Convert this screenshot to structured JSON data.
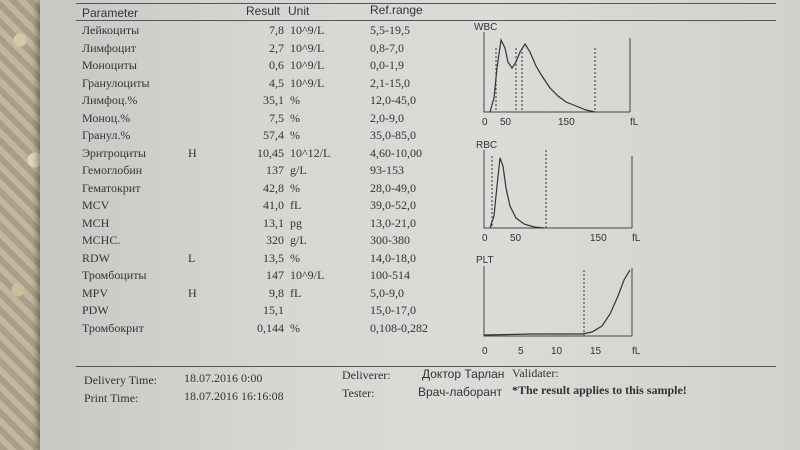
{
  "header": {
    "parameter": "Parameter",
    "result": "Result",
    "unit": "Unit",
    "ref_range": "Ref.range"
  },
  "rows": [
    {
      "name": "Лейкоциты",
      "flag": "",
      "result": "7,8",
      "unit": "10^9/L",
      "ref": "5,5-19,5"
    },
    {
      "name": "Лимфоцит",
      "flag": "",
      "result": "2,7",
      "unit": "10^9/L",
      "ref": "0,8-7,0"
    },
    {
      "name": "Моноциты",
      "flag": "",
      "result": "0,6",
      "unit": "10^9/L",
      "ref": "0,0-1,9"
    },
    {
      "name": "Гранулоциты",
      "flag": "",
      "result": "4,5",
      "unit": "10^9/L",
      "ref": "2,1-15,0"
    },
    {
      "name": "Лимфоц.%",
      "flag": "",
      "result": "35,1",
      "unit": "%",
      "ref": "12,0-45,0"
    },
    {
      "name": "Моноц.%",
      "flag": "",
      "result": "7,5",
      "unit": "%",
      "ref": "2,0-9,0"
    },
    {
      "name": "Гранул.%",
      "flag": "",
      "result": "57,4",
      "unit": "%",
      "ref": "35,0-85,0"
    },
    {
      "name": "Эритроциты",
      "flag": "H",
      "result": "10,45",
      "unit": "10^12/L",
      "ref": "4,60-10,00"
    },
    {
      "name": "Гемоглобин",
      "flag": "",
      "result": "137",
      "unit": "g/L",
      "ref": "93-153"
    },
    {
      "name": "Гематокрит",
      "flag": "",
      "result": "42,8",
      "unit": "%",
      "ref": "28,0-49,0"
    },
    {
      "name": "MCV",
      "flag": "",
      "result": "41,0",
      "unit": "fL",
      "ref": "39,0-52,0"
    },
    {
      "name": "MCH",
      "flag": "",
      "result": "13,1",
      "unit": "pg",
      "ref": "13,0-21,0"
    },
    {
      "name": "MCHC.",
      "flag": "",
      "result": "320",
      "unit": "g/L",
      "ref": "300-380"
    },
    {
      "name": "RDW",
      "flag": "L",
      "result": "13,5",
      "unit": "%",
      "ref": "14,0-18,0"
    },
    {
      "name": "Тромбоциты",
      "flag": "",
      "result": "147",
      "unit": "10^9/L",
      "ref": "100-514"
    },
    {
      "name": "MPV",
      "flag": "H",
      "result": "9,8",
      "unit": "fL",
      "ref": "5,0-9,0"
    },
    {
      "name": "PDW",
      "flag": "",
      "result": "15,1",
      "unit": "",
      "ref": "15,0-17,0"
    },
    {
      "name": "Тромбокрит",
      "flag": "",
      "result": "0,144",
      "unit": "%",
      "ref": "0,108-0,282"
    }
  ],
  "graphs": {
    "wbc": {
      "title": "WBC",
      "ticks": [
        "0",
        "50",
        "150",
        "fL"
      ]
    },
    "rbc": {
      "title": "RBC",
      "ticks": [
        "0",
        "50",
        "150",
        "fL"
      ]
    },
    "plt": {
      "title": "PLT",
      "ticks": [
        "0",
        "5",
        "10",
        "15",
        "fL"
      ]
    }
  },
  "footer": {
    "delivery_label": "Delivery Time:",
    "delivery_value": "18.07.2016 0:00",
    "print_label": "Print Time:",
    "print_value": "18.07.2016 16:16:08",
    "deliverer_label": "Deliverer:",
    "deliverer_value": "Доктор Тарлан",
    "validater_label": "Validater:",
    "tester_label": "Tester:",
    "tester_value": "Врач-лаборант",
    "note": "*The result applies to this sample!"
  }
}
